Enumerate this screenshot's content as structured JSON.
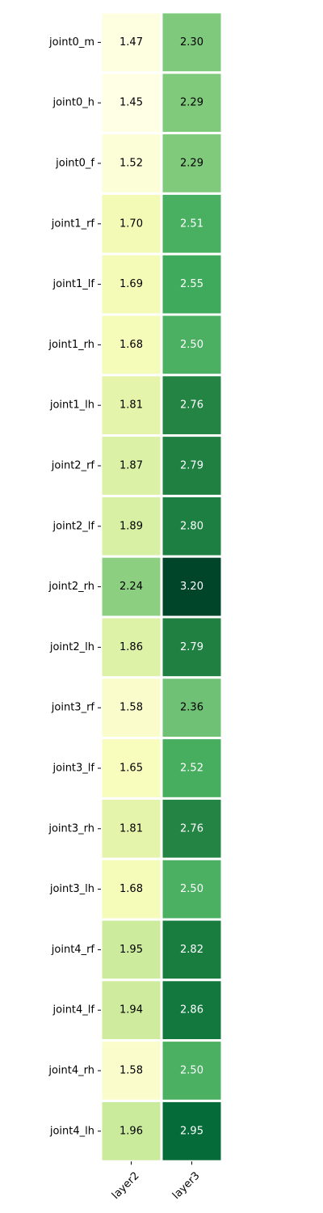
{
  "chart_data": {
    "type": "heatmap",
    "rows": [
      "joint0_m",
      "joint0_h",
      "joint0_f",
      "joint1_rf",
      "joint1_lf",
      "joint1_rh",
      "joint1_lh",
      "joint2_rf",
      "joint2_lf",
      "joint2_rh",
      "joint2_lh",
      "joint3_rf",
      "joint3_lf",
      "joint3_rh",
      "joint3_lh",
      "joint4_rf",
      "joint4_lf",
      "joint4_rh",
      "joint4_lh"
    ],
    "columns": [
      "layer2",
      "layer3"
    ],
    "values": [
      [
        1.47,
        2.3
      ],
      [
        1.45,
        2.29
      ],
      [
        1.52,
        2.29
      ],
      [
        1.7,
        2.51
      ],
      [
        1.69,
        2.55
      ],
      [
        1.68,
        2.5
      ],
      [
        1.81,
        2.76
      ],
      [
        1.87,
        2.79
      ],
      [
        1.89,
        2.8
      ],
      [
        2.24,
        3.2
      ],
      [
        1.86,
        2.79
      ],
      [
        1.58,
        2.36
      ],
      [
        1.65,
        2.52
      ],
      [
        1.81,
        2.76
      ],
      [
        1.68,
        2.5
      ],
      [
        1.95,
        2.82
      ],
      [
        1.94,
        2.86
      ],
      [
        1.58,
        2.5
      ],
      [
        1.96,
        2.95
      ]
    ],
    "colormap": "YlGn",
    "color_range": [
      1.45,
      3.2
    ],
    "value_format": "2 decimals",
    "grid": false,
    "legend": "none"
  }
}
